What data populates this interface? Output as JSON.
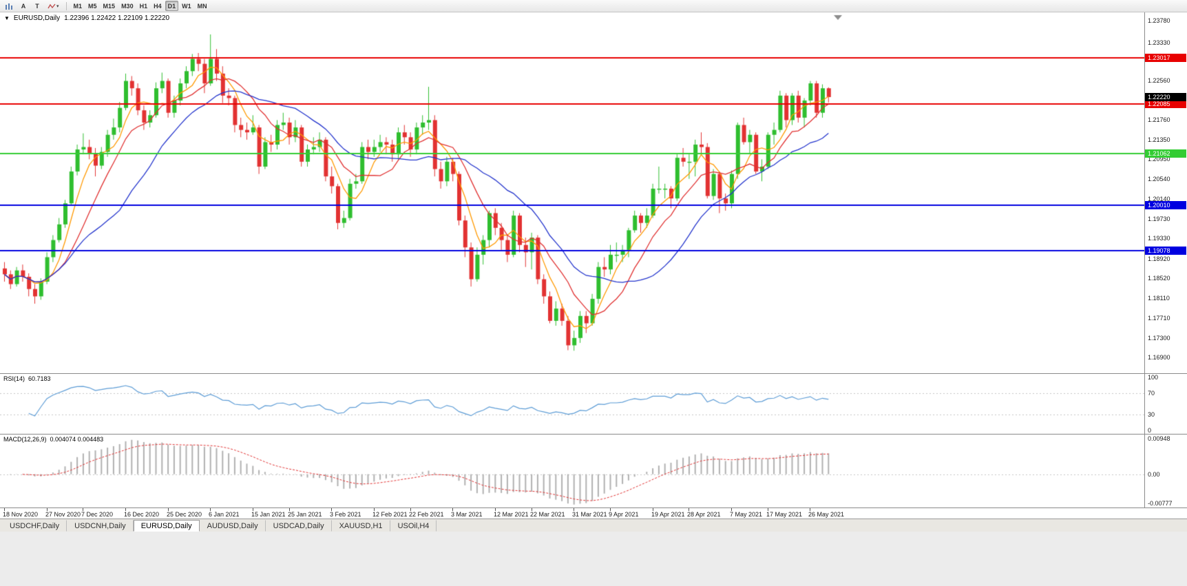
{
  "icons": {
    "collapse": "▼"
  },
  "toolbar": {
    "buttons": [
      {
        "icon": "bar-chart-icon"
      },
      {
        "label": "A"
      },
      {
        "label": "T"
      },
      {
        "icon": "zigzag-icon",
        "dropdown": "▾"
      }
    ],
    "timeframes": [
      "M1",
      "M5",
      "M15",
      "M30",
      "H1",
      "H4",
      "D1",
      "W1",
      "MN"
    ],
    "active_timeframe": "D1"
  },
  "chart": {
    "title": {
      "symbol": "EURUSD,Daily",
      "ohlc": "1.22396 1.22422 1.22109 1.22220"
    },
    "price_axis": {
      "ticks": [
        "1.23780",
        "1.23330",
        "1.22560",
        "1.21760",
        "1.21350",
        "1.20950",
        "1.20540",
        "1.20140",
        "1.19730",
        "1.19330",
        "1.18920",
        "1.18520",
        "1.18110",
        "1.17710",
        "1.17300",
        "1.16900"
      ],
      "current": {
        "label": "1.22220",
        "price": 1.2222,
        "color": "#000000"
      }
    },
    "hlines": [
      {
        "price": 1.23017,
        "label": "1.23017",
        "color": "#E80000"
      },
      {
        "price": 1.22085,
        "label": "1.22085",
        "color": "#E80000"
      },
      {
        "price": 1.21062,
        "label": "1.21062",
        "color": "#33CC33"
      },
      {
        "price": 1.2001,
        "label": "1.20010",
        "color": "#0000E0"
      },
      {
        "price": 1.19078,
        "label": "1.19078",
        "color": "#0000E0"
      }
    ]
  },
  "rsi": {
    "label": "RSI(14)",
    "value": "60.7183",
    "period": 14,
    "range": [
      0,
      100
    ],
    "levels": [
      70,
      30
    ],
    "axis_labels": [
      {
        "text": "100",
        "value": 100
      },
      {
        "text": "70",
        "value": 70
      },
      {
        "text": "30",
        "value": 30
      },
      {
        "text": "0",
        "value": 0
      }
    ],
    "color": "#5B9BD5"
  },
  "macd": {
    "label": "MACD(12,26,9)",
    "value": "0.004074 0.004483",
    "params": [
      12,
      26,
      9
    ],
    "range": [
      -0.00777,
      0.00948
    ],
    "axis_labels": [
      {
        "text": "0.00948",
        "value": 0.00948
      },
      {
        "text": "0.00",
        "value": 0
      },
      {
        "text": "-0.00777",
        "value": -0.00777
      }
    ],
    "hist_color": "#B0B0B0",
    "signal_color": "#E03030"
  },
  "tabbar": {
    "tabs": [
      "USDCHF,Daily",
      "USDCNH,Daily",
      "EURUSD,Daily",
      "AUDUSD,Daily",
      "USDCAD,Daily",
      "XAUUSD,H1",
      "USOil,H4"
    ],
    "active": "EURUSD,Daily"
  },
  "chart_data": {
    "type": "candlestick",
    "symbol": "EURUSD",
    "timeframe": "Daily",
    "price_view": [
      1.1658,
      1.2395
    ],
    "colors": {
      "bull": "#2FBE2F",
      "bear": "#E23232"
    },
    "moving_averages": [
      {
        "name": "fast",
        "window": 5,
        "color": "#FF9900"
      },
      {
        "name": "medium",
        "window": 10,
        "color": "#E03030"
      },
      {
        "name": "slow",
        "window": 20,
        "color": "#2233CC"
      }
    ],
    "date_marks": [
      {
        "label": "18 Nov 2020",
        "candle": 0
      },
      {
        "label": "27 Nov 2020",
        "candle": 7
      },
      {
        "label": "7 Dec 2020",
        "candle": 13
      },
      {
        "label": "16 Dec 2020",
        "candle": 20
      },
      {
        "label": "25 Dec 2020",
        "candle": 27
      },
      {
        "label": "6 Jan 2021",
        "candle": 34
      },
      {
        "label": "15 Jan 2021",
        "candle": 41
      },
      {
        "label": "25 Jan 2021",
        "candle": 47
      },
      {
        "label": "3 Feb 2021",
        "candle": 54
      },
      {
        "label": "12 Feb 2021",
        "candle": 61
      },
      {
        "label": "22 Feb 2021",
        "candle": 67
      },
      {
        "label": "3 Mar 2021",
        "candle": 74
      },
      {
        "label": "12 Mar 2021",
        "candle": 81
      },
      {
        "label": "22 Mar 2021",
        "candle": 87
      },
      {
        "label": "31 Mar 2021",
        "candle": 94
      },
      {
        "label": "9 Apr 2021",
        "candle": 100
      },
      {
        "label": "19 Apr 2021",
        "candle": 107
      },
      {
        "label": "28 Apr 2021",
        "candle": 113
      },
      {
        "label": "7 May 2021",
        "candle": 120
      },
      {
        "label": "17 May 2021",
        "candle": 126
      },
      {
        "label": "26 May 2021",
        "candle": 133
      }
    ],
    "candles": [
      [
        1.1872,
        1.1885,
        1.1845,
        1.186
      ],
      [
        1.186,
        1.1868,
        1.183,
        1.184
      ],
      [
        1.184,
        1.1875,
        1.1835,
        1.1868
      ],
      [
        1.1868,
        1.188,
        1.1845,
        1.1855
      ],
      [
        1.1855,
        1.1862,
        1.1815,
        1.183
      ],
      [
        1.183,
        1.184,
        1.18,
        1.1815
      ],
      [
        1.1815,
        1.1852,
        1.1808,
        1.1845
      ],
      [
        1.1845,
        1.1905,
        1.184,
        1.1895
      ],
      [
        1.1895,
        1.194,
        1.1885,
        1.193
      ],
      [
        1.193,
        1.1975,
        1.1925,
        1.1962
      ],
      [
        1.1962,
        1.2012,
        1.1955,
        1.2005
      ],
      [
        1.2005,
        1.208,
        1.2,
        1.207
      ],
      [
        1.207,
        1.2125,
        1.2062,
        1.2115
      ],
      [
        1.2115,
        1.2148,
        1.2105,
        1.212
      ],
      [
        1.212,
        1.2135,
        1.2095,
        1.2108
      ],
      [
        1.2108,
        1.2118,
        1.206,
        1.2082
      ],
      [
        1.2082,
        1.212,
        1.2075,
        1.211
      ],
      [
        1.211,
        1.2155,
        1.21,
        1.2145
      ],
      [
        1.2145,
        1.2178,
        1.2135,
        1.216
      ],
      [
        1.216,
        1.2212,
        1.215,
        1.22
      ],
      [
        1.22,
        1.227,
        1.2195,
        1.2255
      ],
      [
        1.2255,
        1.2265,
        1.2225,
        1.224
      ],
      [
        1.224,
        1.225,
        1.2185,
        1.2195
      ],
      [
        1.2195,
        1.2205,
        1.2155,
        1.217
      ],
      [
        1.217,
        1.2195,
        1.216,
        1.2185
      ],
      [
        1.2185,
        1.2252,
        1.218,
        1.224
      ],
      [
        1.224,
        1.2272,
        1.223,
        1.2255
      ],
      [
        1.2255,
        1.226,
        1.218,
        1.219
      ],
      [
        1.219,
        1.2225,
        1.218,
        1.2215
      ],
      [
        1.2215,
        1.226,
        1.2205,
        1.225
      ],
      [
        1.225,
        1.2285,
        1.224,
        1.2275
      ],
      [
        1.2275,
        1.231,
        1.2265,
        1.23
      ],
      [
        1.23,
        1.2312,
        1.2275,
        1.229
      ],
      [
        1.229,
        1.23,
        1.223,
        1.225
      ],
      [
        1.225,
        1.235,
        1.2245,
        1.23
      ],
      [
        1.23,
        1.232,
        1.2255,
        1.227
      ],
      [
        1.227,
        1.2285,
        1.221,
        1.2225
      ],
      [
        1.2225,
        1.224,
        1.2205,
        1.222
      ],
      [
        1.222,
        1.2225,
        1.215,
        1.2165
      ],
      [
        1.2165,
        1.218,
        1.214,
        1.2155
      ],
      [
        1.2155,
        1.217,
        1.2135,
        1.215
      ],
      [
        1.215,
        1.2185,
        1.2145,
        1.216
      ],
      [
        1.216,
        1.2165,
        1.2065,
        1.208
      ],
      [
        1.208,
        1.214,
        1.2075,
        1.213
      ],
      [
        1.213,
        1.2145,
        1.211,
        1.2125
      ],
      [
        1.2125,
        1.2175,
        1.2115,
        1.2165
      ],
      [
        1.2165,
        1.219,
        1.2155,
        1.217
      ],
      [
        1.217,
        1.218,
        1.2125,
        1.214
      ],
      [
        1.214,
        1.2175,
        1.213,
        1.216
      ],
      [
        1.216,
        1.2165,
        1.208,
        1.209
      ],
      [
        1.209,
        1.2125,
        1.208,
        1.2115
      ],
      [
        1.2115,
        1.214,
        1.2105,
        1.212
      ],
      [
        1.212,
        1.215,
        1.211,
        1.2135
      ],
      [
        1.2135,
        1.214,
        1.205,
        1.206
      ],
      [
        1.206,
        1.208,
        1.2025,
        1.204
      ],
      [
        1.204,
        1.2045,
        1.1952,
        1.1965
      ],
      [
        1.1965,
        1.199,
        1.1955,
        1.1975
      ],
      [
        1.1975,
        1.2055,
        1.197,
        1.2045
      ],
      [
        1.2045,
        1.2065,
        1.2035,
        1.205
      ],
      [
        1.205,
        1.213,
        1.2045,
        1.212
      ],
      [
        1.212,
        1.2135,
        1.2095,
        1.211
      ],
      [
        1.211,
        1.2135,
        1.21,
        1.212
      ],
      [
        1.212,
        1.2145,
        1.211,
        1.213
      ],
      [
        1.213,
        1.214,
        1.2105,
        1.2125
      ],
      [
        1.2125,
        1.2135,
        1.209,
        1.2105
      ],
      [
        1.2105,
        1.216,
        1.2095,
        1.215
      ],
      [
        1.215,
        1.2165,
        1.2125,
        1.214
      ],
      [
        1.214,
        1.215,
        1.21,
        1.2115
      ],
      [
        1.2115,
        1.217,
        1.2105,
        1.216
      ],
      [
        1.216,
        1.2185,
        1.2145,
        1.217
      ],
      [
        1.217,
        1.2243,
        1.2155,
        1.2175
      ],
      [
        1.2175,
        1.2185,
        1.206,
        1.2075
      ],
      [
        1.2075,
        1.209,
        1.2035,
        1.205
      ],
      [
        1.205,
        1.21,
        1.204,
        1.209
      ],
      [
        1.209,
        1.2098,
        1.205,
        1.2065
      ],
      [
        1.2065,
        1.207,
        1.196,
        1.197
      ],
      [
        1.197,
        1.198,
        1.1895,
        1.1915
      ],
      [
        1.1915,
        1.1925,
        1.1835,
        1.185
      ],
      [
        1.185,
        1.1915,
        1.1845,
        1.19
      ],
      [
        1.19,
        1.194,
        1.188,
        1.193
      ],
      [
        1.193,
        1.199,
        1.1915,
        1.1985
      ],
      [
        1.1985,
        1.1995,
        1.194,
        1.1955
      ],
      [
        1.1955,
        1.1965,
        1.191,
        1.193
      ],
      [
        1.193,
        1.194,
        1.1885,
        1.19
      ],
      [
        1.19,
        1.199,
        1.1895,
        1.198
      ],
      [
        1.198,
        1.1985,
        1.1905,
        1.192
      ],
      [
        1.192,
        1.1935,
        1.1875,
        1.1905
      ],
      [
        1.1905,
        1.1945,
        1.187,
        1.1935
      ],
      [
        1.1935,
        1.194,
        1.184,
        1.185
      ],
      [
        1.185,
        1.186,
        1.18,
        1.1815
      ],
      [
        1.1815,
        1.1825,
        1.176,
        1.1765
      ],
      [
        1.1765,
        1.1805,
        1.1755,
        1.179
      ],
      [
        1.179,
        1.18,
        1.1755,
        1.1765
      ],
      [
        1.1765,
        1.1775,
        1.1705,
        1.1715
      ],
      [
        1.1715,
        1.1745,
        1.1704,
        1.173
      ],
      [
        1.173,
        1.1785,
        1.172,
        1.1775
      ],
      [
        1.1775,
        1.1785,
        1.174,
        1.176
      ],
      [
        1.176,
        1.182,
        1.1755,
        1.181
      ],
      [
        1.181,
        1.1885,
        1.18,
        1.1875
      ],
      [
        1.1875,
        1.1895,
        1.1855,
        1.187
      ],
      [
        1.187,
        1.192,
        1.186,
        1.19
      ],
      [
        1.19,
        1.1925,
        1.1885,
        1.19
      ],
      [
        1.19,
        1.192,
        1.1885,
        1.191
      ],
      [
        1.191,
        1.1955,
        1.1895,
        1.195
      ],
      [
        1.195,
        1.199,
        1.1945,
        1.198
      ],
      [
        1.198,
        1.1985,
        1.1945,
        1.1965
      ],
      [
        1.1965,
        1.1995,
        1.1955,
        1.198
      ],
      [
        1.198,
        1.2045,
        1.1975,
        1.2035
      ],
      [
        1.2035,
        1.208,
        1.2025,
        1.2035
      ],
      [
        1.2035,
        1.2045,
        1.2015,
        1.2035
      ],
      [
        1.2035,
        1.204,
        1.1995,
        1.2015
      ],
      [
        1.2015,
        1.2105,
        1.201,
        1.2098
      ],
      [
        1.2098,
        1.2118,
        1.208,
        1.209
      ],
      [
        1.209,
        1.2105,
        1.2055,
        1.209
      ],
      [
        1.209,
        1.2135,
        1.206,
        1.2125
      ],
      [
        1.2125,
        1.215,
        1.2105,
        1.212
      ],
      [
        1.212,
        1.2128,
        1.2015,
        1.202
      ],
      [
        1.202,
        1.2075,
        1.2012,
        1.2065
      ],
      [
        1.2065,
        1.207,
        1.1985,
        1.2015
      ],
      [
        1.2015,
        1.2025,
        1.199,
        1.2005
      ],
      [
        1.2005,
        1.2072,
        1.1995,
        1.2065
      ],
      [
        1.2065,
        1.217,
        1.2055,
        1.2165
      ],
      [
        1.2165,
        1.218,
        1.2125,
        1.213
      ],
      [
        1.213,
        1.2155,
        1.2105,
        1.2145
      ],
      [
        1.2145,
        1.215,
        1.2065,
        1.207
      ],
      [
        1.207,
        1.2095,
        1.205,
        1.208
      ],
      [
        1.208,
        1.215,
        1.2075,
        1.2145
      ],
      [
        1.2145,
        1.217,
        1.2125,
        1.2155
      ],
      [
        1.2155,
        1.2235,
        1.215,
        1.2225
      ],
      [
        1.2225,
        1.223,
        1.216,
        1.2175
      ],
      [
        1.2175,
        1.223,
        1.2165,
        1.2225
      ],
      [
        1.2225,
        1.2235,
        1.217,
        1.218
      ],
      [
        1.218,
        1.222,
        1.216,
        1.2215
      ],
      [
        1.2215,
        1.2255,
        1.2205,
        1.225
      ],
      [
        1.225,
        1.2255,
        1.218,
        1.219
      ],
      [
        1.219,
        1.2248,
        1.218,
        1.224
      ],
      [
        1.224,
        1.2242,
        1.2211,
        1.2222
      ]
    ]
  }
}
